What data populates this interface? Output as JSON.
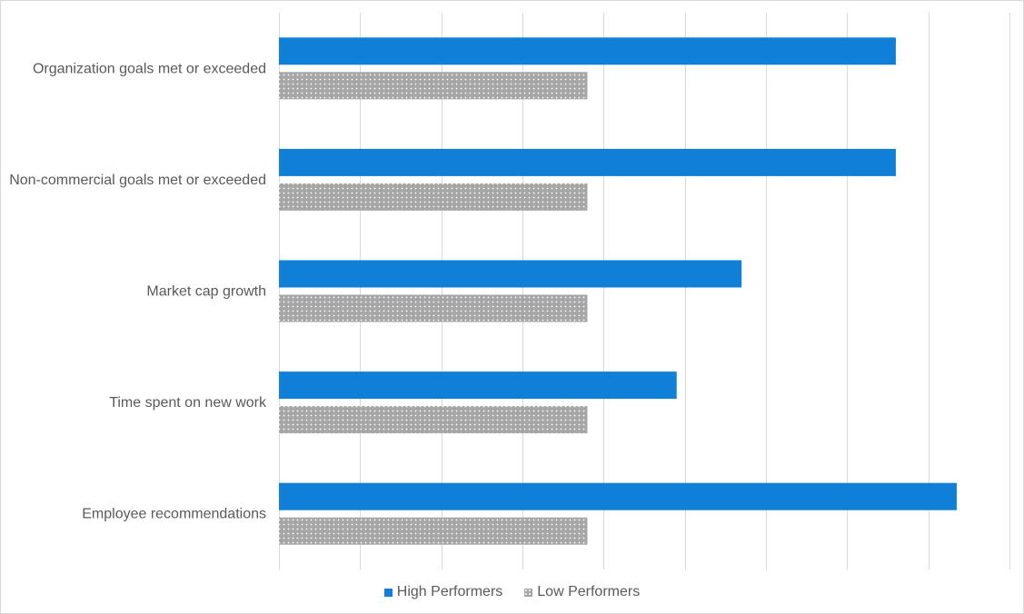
{
  "chart_data": {
    "type": "bar",
    "orientation": "horizontal",
    "categories": [
      "Organization goals met or exceeded",
      "Non-commercial goals met or exceeded",
      "Market cap growth",
      "Time spent on new work",
      "Employee recommendations"
    ],
    "series": [
      {
        "name": "High Performers",
        "values": [
          7.6,
          7.6,
          5.7,
          4.9,
          8.35
        ],
        "color": "#0f7fd7",
        "pattern": "solid"
      },
      {
        "name": "Low Performers",
        "values": [
          3.8,
          3.8,
          3.8,
          3.8,
          3.8
        ],
        "color": "#a6a6a6",
        "pattern": "dotted"
      }
    ],
    "xlim": [
      0,
      9
    ],
    "xtick_step": 1,
    "grid": "vertical",
    "legend": "bottom",
    "title": "",
    "xlabel": "",
    "ylabel": ""
  }
}
